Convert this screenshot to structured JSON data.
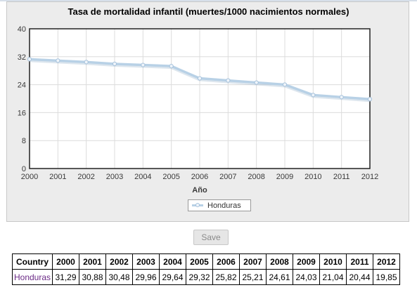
{
  "chart_data": {
    "type": "line",
    "title": "Tasa de mortalidad infantil (muertes/1000 nacimientos normales)",
    "xlabel": "Año",
    "ylabel": "",
    "x": [
      "2000",
      "2001",
      "2002",
      "2003",
      "2004",
      "2005",
      "2006",
      "2007",
      "2008",
      "2009",
      "2010",
      "2011",
      "2012"
    ],
    "ylim": [
      0,
      40
    ],
    "yticks": [
      0,
      8,
      16,
      24,
      32,
      40
    ],
    "grid": true,
    "legend_position": "bottom-center",
    "series": [
      {
        "name": "Honduras",
        "values": [
          31.29,
          30.88,
          30.48,
          29.96,
          29.64,
          29.32,
          25.82,
          25.21,
          24.61,
          24.03,
          21.04,
          20.44,
          19.85
        ],
        "color": "#b8d1e6"
      }
    ]
  },
  "save_button_label": "Save",
  "table": {
    "header_country": "Country",
    "years": [
      "2000",
      "2001",
      "2002",
      "2003",
      "2004",
      "2005",
      "2006",
      "2007",
      "2008",
      "2009",
      "2010",
      "2011",
      "2012"
    ],
    "rows": [
      {
        "country": "Honduras",
        "values": [
          "31,29",
          "30,88",
          "30,48",
          "29,96",
          "29,64",
          "29,32",
          "25,82",
          "25,21",
          "24,61",
          "24,03",
          "21,04",
          "20,44",
          "19,85"
        ]
      }
    ]
  },
  "colors": {
    "panel_background": "#ececec",
    "plot_background": "#ffffff",
    "line": "#b8d1e6",
    "country_link": "#6b2a86"
  }
}
